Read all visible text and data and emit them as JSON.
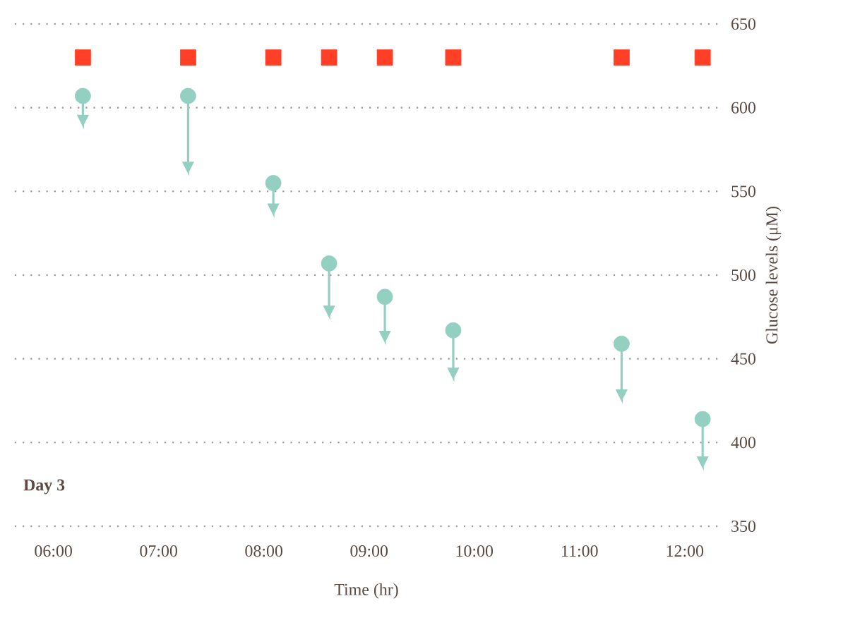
{
  "chart_data": {
    "type": "scatter",
    "xlabel": "Time (hr)",
    "ylabel": "Glucose levels (μM)",
    "xlim": [
      5.64,
      12.31
    ],
    "ylim": [
      350,
      650
    ],
    "xticks": [
      {
        "value": 6,
        "label": "06:00"
      },
      {
        "value": 7,
        "label": "07:00"
      },
      {
        "value": 8,
        "label": "08:00"
      },
      {
        "value": 9,
        "label": "09:00"
      },
      {
        "value": 10,
        "label": "10:00"
      },
      {
        "value": 11,
        "label": "11:00"
      },
      {
        "value": 12,
        "label": "12:00"
      }
    ],
    "yticks": [
      350,
      400,
      450,
      500,
      550,
      600,
      650
    ],
    "grid": "y",
    "annotations": [
      "Day 3"
    ],
    "series": [
      {
        "color": "#ff3f26",
        "marker": "square",
        "x": [
          6.28,
          7.28,
          8.09,
          8.62,
          9.15,
          9.8,
          11.4,
          12.17
        ],
        "values": [
          630,
          630,
          630,
          630,
          630,
          630,
          630,
          630
        ]
      },
      {
        "color": "#94d0c2",
        "marker": "circle",
        "x": [
          6.28,
          7.28,
          8.09,
          8.62,
          9.15,
          9.8,
          11.4,
          12.17
        ],
        "values": [
          607,
          607,
          555,
          507,
          487,
          467,
          459,
          414
        ],
        "errors": [
          [
            590,
            607
          ],
          [
            562,
            607
          ],
          [
            537,
            555
          ],
          [
            476,
            507
          ],
          [
            461,
            487
          ],
          [
            439,
            467
          ],
          [
            426,
            459
          ],
          [
            386,
            414
          ]
        ]
      }
    ]
  }
}
